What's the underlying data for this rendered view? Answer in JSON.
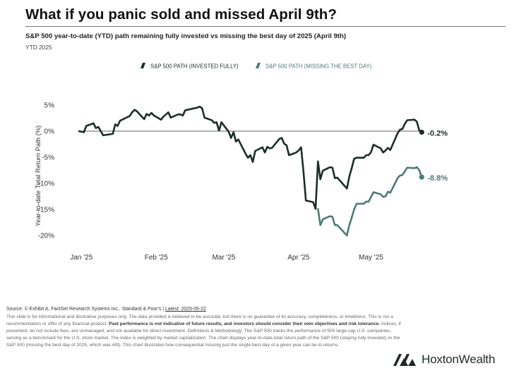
{
  "header": {
    "title": "What if you panic sold and missed April 9th?",
    "subtitle": "S&P 500 year-to-date (YTD) path remaining fully invested vs missing the best day of 2025 (April 9th)",
    "period": "YTD 2025"
  },
  "colors": {
    "invested": "#1b2d29",
    "missing": "#4e7a76",
    "zero_line": "#333333",
    "accent_rule": "#777777"
  },
  "chart_data": {
    "type": "line",
    "title": "",
    "xlabel": "",
    "ylabel": "Year-to-date Total Return Path (%)",
    "x_tick_labels": [
      "Jan '25",
      "Feb '25",
      "Mar '25",
      "Apr '25",
      "May '25"
    ],
    "x_tick_dates": [
      "2025-01-01",
      "2025-02-01",
      "2025-03-01",
      "2025-04-01",
      "2025-05-01"
    ],
    "y_ticks": [
      5,
      0,
      -5,
      -10,
      -15,
      -20
    ],
    "y_tick_labels": [
      "5%",
      "0%",
      "-5%",
      "-10%",
      "-15%",
      "-20%"
    ],
    "ylim": [
      -23,
      7
    ],
    "xlim": [
      "2024-12-24",
      "2025-05-31"
    ],
    "grid": false,
    "legend": "top-center",
    "zero_line": true,
    "series": [
      {
        "name": "S&P 500 PATH (INVESTED FULLY)",
        "end_label": "-0.2%",
        "x": [
          "2024-12-31",
          "2025-01-02",
          "2025-01-03",
          "2025-01-06",
          "2025-01-07",
          "2025-01-08",
          "2025-01-10",
          "2025-01-13",
          "2025-01-14",
          "2025-01-15",
          "2025-01-16",
          "2025-01-17",
          "2025-01-21",
          "2025-01-22",
          "2025-01-23",
          "2025-01-24",
          "2025-01-27",
          "2025-01-28",
          "2025-01-29",
          "2025-01-30",
          "2025-01-31",
          "2025-02-03",
          "2025-02-04",
          "2025-02-05",
          "2025-02-06",
          "2025-02-07",
          "2025-02-10",
          "2025-02-11",
          "2025-02-12",
          "2025-02-13",
          "2025-02-14",
          "2025-02-18",
          "2025-02-19",
          "2025-02-20",
          "2025-02-21",
          "2025-02-24",
          "2025-02-25",
          "2025-02-26",
          "2025-02-27",
          "2025-02-28",
          "2025-03-03",
          "2025-03-04",
          "2025-03-05",
          "2025-03-06",
          "2025-03-07",
          "2025-03-10",
          "2025-03-11",
          "2025-03-12",
          "2025-03-13",
          "2025-03-14",
          "2025-03-17",
          "2025-03-18",
          "2025-03-19",
          "2025-03-20",
          "2025-03-21",
          "2025-03-24",
          "2025-03-25",
          "2025-03-26",
          "2025-03-27",
          "2025-03-28",
          "2025-03-31",
          "2025-04-01",
          "2025-04-02",
          "2025-04-03",
          "2025-04-04",
          "2025-04-07",
          "2025-04-08",
          "2025-04-09",
          "2025-04-10",
          "2025-04-11",
          "2025-04-14",
          "2025-04-15",
          "2025-04-16",
          "2025-04-17",
          "2025-04-21",
          "2025-04-22",
          "2025-04-23",
          "2025-04-24",
          "2025-04-25",
          "2025-04-28",
          "2025-04-29",
          "2025-04-30",
          "2025-05-01",
          "2025-05-02",
          "2025-05-05",
          "2025-05-06",
          "2025-05-07",
          "2025-05-08",
          "2025-05-09",
          "2025-05-12",
          "2025-05-13",
          "2025-05-14",
          "2025-05-15",
          "2025-05-16",
          "2025-05-19",
          "2025-05-20",
          "2025-05-21",
          "2025-05-22"
        ],
        "y": [
          0.0,
          -0.2,
          1.0,
          1.5,
          0.6,
          0.8,
          -0.8,
          -0.6,
          -0.5,
          1.3,
          1.0,
          2.0,
          2.9,
          3.6,
          4.1,
          3.8,
          2.3,
          3.3,
          3.0,
          3.5,
          3.0,
          2.2,
          2.8,
          3.2,
          3.6,
          2.6,
          3.2,
          3.2,
          3.0,
          4.0,
          4.1,
          4.5,
          4.7,
          4.4,
          2.6,
          2.1,
          1.6,
          1.7,
          0.1,
          1.7,
          -0.1,
          -1.3,
          -0.2,
          -2.0,
          -1.6,
          -4.3,
          -5.1,
          -4.6,
          -5.9,
          -3.8,
          -3.1,
          -4.1,
          -3.0,
          -3.3,
          -3.2,
          -1.5,
          -1.3,
          -2.4,
          -2.7,
          -4.6,
          -4.1,
          -3.7,
          -3.1,
          -7.8,
          -13.3,
          -13.6,
          -14.9,
          -5.8,
          -9.2,
          -7.6,
          -6.9,
          -7.0,
          -9.0,
          -8.9,
          -11.0,
          -8.7,
          -7.1,
          -5.3,
          -5.1,
          -5.1,
          -4.6,
          -4.6,
          -4.0,
          -2.6,
          -3.3,
          -4.1,
          -3.7,
          -3.2,
          -3.6,
          -0.4,
          0.3,
          0.4,
          1.4,
          2.1,
          2.2,
          1.8,
          0.1,
          -0.2
        ]
      },
      {
        "name": "S&P 500 PATH (MISSING THE BEST DAY)",
        "end_label": "-8.8%",
        "x": [
          "2025-04-09",
          "2025-04-10",
          "2025-04-11",
          "2025-04-14",
          "2025-04-15",
          "2025-04-16",
          "2025-04-17",
          "2025-04-21",
          "2025-04-22",
          "2025-04-23",
          "2025-04-24",
          "2025-04-25",
          "2025-04-28",
          "2025-04-29",
          "2025-04-30",
          "2025-05-01",
          "2025-05-02",
          "2025-05-05",
          "2025-05-06",
          "2025-05-07",
          "2025-05-08",
          "2025-05-09",
          "2025-05-12",
          "2025-05-13",
          "2025-05-14",
          "2025-05-15",
          "2025-05-16",
          "2025-05-19",
          "2025-05-20",
          "2025-05-21",
          "2025-05-22"
        ],
        "y": [
          -14.9,
          -18.0,
          -16.9,
          -16.3,
          -16.4,
          -18.0,
          -18.0,
          -20.0,
          -18.0,
          -16.6,
          -15.0,
          -13.9,
          -13.9,
          -13.5,
          -13.5,
          -12.6,
          -11.7,
          -12.1,
          -12.6,
          -12.5,
          -11.6,
          -11.8,
          -9.0,
          -8.5,
          -8.4,
          -7.7,
          -7.0,
          -7.1,
          -6.9,
          -7.5,
          -8.8
        ]
      }
    ]
  },
  "footer": {
    "source": "Source: © Exhibit A, FactSet Research Systems Inc., Standard & Poor's |",
    "latest": "Latest: 2025-05-22",
    "d1": "This slide is for informational and illustrative purposes only. The data provided is believed to be accurate, but there is no guarantee of its accuracy, completeness, or timeliness. This is not a recommendation or offer of any financial product.",
    "d2": "Past performance is not indicative of future results, and investors should consider their own objectives and risk tolerance.",
    "d3": "Indices, if presented, do not include fees, are unmanaged, and not available for direct investment. Definitions & Methodology: The S&P 500 tracks the performance of 500 large-cap U.S. companies, serving as a benchmark for the U.S. stock market. The index is weighted by market capitalization. The chart displays year-to-date total return path of the S&P 500 (staying fully invested) vs the S&P 500 (missing the best day of 2025, which was 4/9). This chart illustrates how consequential missing just the single best day of a given year can be to returns."
  },
  "logo": {
    "name_bold": "Hoxton",
    "name_light": "Wealth"
  }
}
